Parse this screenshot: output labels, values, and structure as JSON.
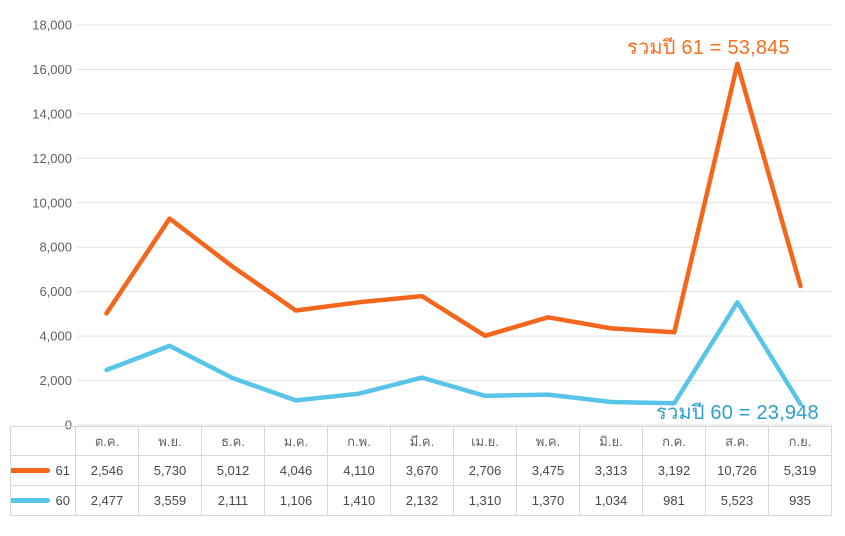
{
  "chart_data": {
    "type": "line",
    "stacked": true,
    "title": "",
    "xlabel": "",
    "ylabel": "",
    "categories": [
      "ต.ค.",
      "พ.ย.",
      "ธ.ค.",
      "ม.ค.",
      "ก.พ.",
      "มี.ค.",
      "เม.ย.",
      "พ.ค.",
      "มิ.ย.",
      "ก.ค.",
      "ส.ค.",
      "ก.ย."
    ],
    "series": [
      {
        "name": "61",
        "color": "#f4661b",
        "values": [
          2546,
          5730,
          5012,
          4046,
          4110,
          3670,
          2706,
          3475,
          3313,
          3192,
          10726,
          5319
        ],
        "total": 53845
      },
      {
        "name": "60",
        "color": "#58c5e8",
        "values": [
          2477,
          3559,
          2111,
          1106,
          1410,
          2132,
          1310,
          1370,
          1034,
          981,
          5523,
          935
        ],
        "total": 23948
      }
    ],
    "ylim": [
      0,
      18000
    ],
    "yticks": [
      0,
      2000,
      4000,
      6000,
      8000,
      10000,
      12000,
      14000,
      16000,
      18000
    ],
    "grid": true,
    "legend_position": "table-left",
    "annotations": [
      {
        "text": "รวมปี 61 = 53,845",
        "color": "#f8701e"
      },
      {
        "text": "รวมปี 60 = 23,948",
        "color": "#2e9fcb"
      }
    ],
    "colors": {
      "gridline": "#e2e2e2",
      "tick_label": "#616161",
      "table_border": "#d5d8da",
      "table_text": "#46494d"
    }
  }
}
